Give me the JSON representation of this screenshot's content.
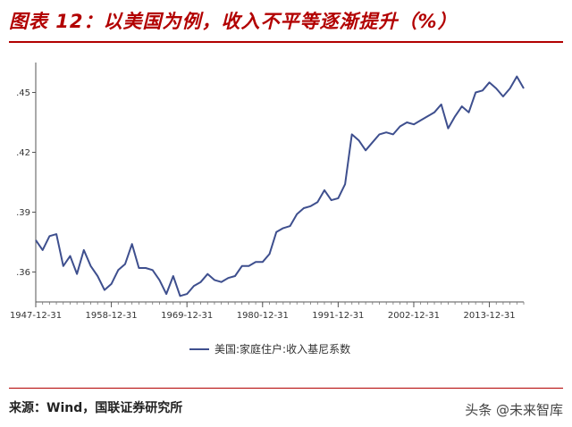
{
  "header": {
    "title": "图表 12：以美国为例，收入不平等逐渐提升（%）"
  },
  "footer": {
    "source": "来源：Wind，国联证券研究所",
    "watermark": "头条 @未来智库"
  },
  "chart_data": {
    "type": "line",
    "title": "",
    "xlabel": "",
    "ylabel": "",
    "ylim": [
      0.345,
      0.465
    ],
    "y_ticks": [
      0.36,
      0.39,
      0.42,
      0.45
    ],
    "y_tick_labels": [
      ".36",
      ".39",
      ".42",
      ".45"
    ],
    "x_tick_labels": [
      "1947-12-31",
      "1958-12-31",
      "1969-12-31",
      "1980-12-31",
      "1991-12-31",
      "2002-12-31",
      "2013-12-31"
    ],
    "x_tick_years": [
      1947,
      1958,
      1969,
      1980,
      1991,
      2002,
      2013
    ],
    "x_range": [
      1947,
      2018
    ],
    "grid": false,
    "legend_position": "bottom",
    "colors": {
      "series": "#3e4f8e",
      "title": "#b20000"
    },
    "series": [
      {
        "name": "美国:家庭住户:收入基尼系数",
        "x": [
          1947,
          1948,
          1949,
          1950,
          1951,
          1952,
          1953,
          1954,
          1955,
          1956,
          1957,
          1958,
          1959,
          1960,
          1961,
          1962,
          1963,
          1964,
          1965,
          1966,
          1967,
          1968,
          1969,
          1970,
          1971,
          1972,
          1973,
          1974,
          1975,
          1976,
          1977,
          1978,
          1979,
          1980,
          1981,
          1982,
          1983,
          1984,
          1985,
          1986,
          1987,
          1988,
          1989,
          1990,
          1991,
          1992,
          1993,
          1994,
          1995,
          1996,
          1997,
          1998,
          1999,
          2000,
          2001,
          2002,
          2003,
          2004,
          2005,
          2006,
          2007,
          2008,
          2009,
          2010,
          2011,
          2012,
          2013,
          2014,
          2015,
          2016,
          2017,
          2018
        ],
        "values": [
          0.376,
          0.371,
          0.378,
          0.379,
          0.363,
          0.368,
          0.359,
          0.371,
          0.363,
          0.358,
          0.351,
          0.354,
          0.361,
          0.364,
          0.374,
          0.362,
          0.362,
          0.361,
          0.356,
          0.349,
          0.358,
          0.348,
          0.349,
          0.353,
          0.355,
          0.359,
          0.356,
          0.355,
          0.357,
          0.358,
          0.363,
          0.363,
          0.365,
          0.365,
          0.369,
          0.38,
          0.382,
          0.383,
          0.389,
          0.392,
          0.393,
          0.395,
          0.401,
          0.396,
          0.397,
          0.404,
          0.429,
          0.426,
          0.421,
          0.425,
          0.429,
          0.43,
          0.429,
          0.433,
          0.435,
          0.434,
          0.436,
          0.438,
          0.44,
          0.444,
          0.432,
          0.438,
          0.443,
          0.44,
          0.45,
          0.451,
          0.455,
          0.452,
          0.448,
          0.452,
          0.458,
          0.452
        ]
      }
    ]
  }
}
